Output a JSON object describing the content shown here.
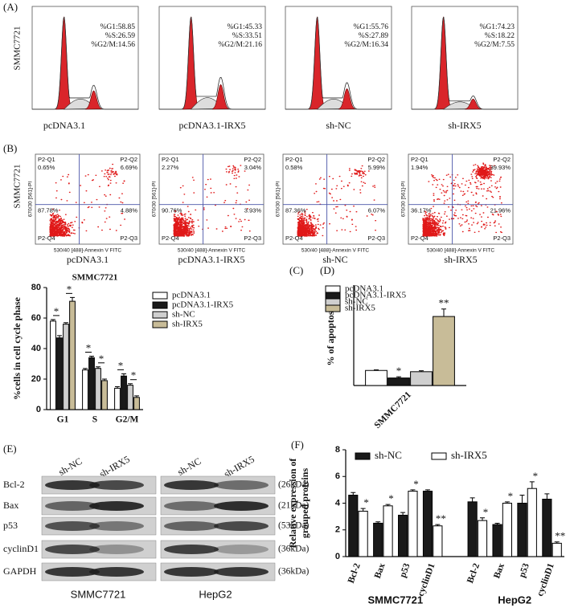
{
  "flow_cycle": {
    "panel": "(A)",
    "cell_line": "SMMC7721",
    "plots": [
      {
        "label": "pcDNA3.1",
        "stats": [
          "%G1:58.85",
          "%S:26.59",
          "%G2/M:14.56"
        ]
      },
      {
        "label": "pcDNA3.1-IRX5",
        "stats": [
          "%G1:45.33",
          "%S:33.51",
          "%G2/M:21.16"
        ]
      },
      {
        "label": "sh-NC",
        "stats": [
          "%G1:55.76",
          "%S:27.89",
          "%G2/M:16.34"
        ]
      },
      {
        "label": "sh-IRX5",
        "stats": [
          "%G1:74.23",
          "%S:18.22",
          "%G2/M:7.55"
        ]
      }
    ]
  },
  "flow_apoptosis": {
    "panel": "(B)",
    "cell_line": "SMMC7721",
    "x_label": "530/40 [488]-Annexin V FITC",
    "y_label": "670/30 [561]-PI",
    "plots": [
      {
        "label": "pcDNA3.1",
        "quadrants": [
          {
            "name": "P2-Q1",
            "value": "0.65%"
          },
          {
            "name": "P2-Q2",
            "value": "6.69%"
          },
          {
            "name": "P2-Q3",
            "value": "4.88%"
          },
          {
            "name": "P2-Q4",
            "value": "87.78%"
          }
        ]
      },
      {
        "label": "pcDNA3.1-IRX5",
        "quadrants": [
          {
            "name": "P2-Q1",
            "value": "2.27%"
          },
          {
            "name": "P2-Q2",
            "value": "3.04%"
          },
          {
            "name": "P2-Q3",
            "value": "3.93%"
          },
          {
            "name": "P2-Q4",
            "value": "90.76%"
          }
        ]
      },
      {
        "label": "sh-NC",
        "quadrants": [
          {
            "name": "P2-Q1",
            "value": "0.58%"
          },
          {
            "name": "P2-Q2",
            "value": "5.99%"
          },
          {
            "name": "P2-Q3",
            "value": "6.07%"
          },
          {
            "name": "P2-Q4",
            "value": "87.36%"
          }
        ]
      },
      {
        "label": "sh-IRX5",
        "quadrants": [
          {
            "name": "P2-Q1",
            "value": "1.94%"
          },
          {
            "name": "P2-Q2",
            "value": "39.93%"
          },
          {
            "name": "P2-Q3",
            "value": "21.96%"
          },
          {
            "name": "P2-Q4",
            "value": "36.17%"
          }
        ]
      }
    ]
  },
  "western_blot": {
    "panel": "(E)",
    "lanes": [
      "sh-NC",
      "sh-IRX5",
      "sh-NC",
      "sh-IRX5"
    ],
    "cell_lines": [
      "SMMC7721",
      "HepG2"
    ],
    "proteins": [
      {
        "name": "Bcl-2",
        "size": "(26kDa)"
      },
      {
        "name": "Bax",
        "size": "(21kDa)"
      },
      {
        "name": "p53",
        "size": "(53kDa)"
      },
      {
        "name": "cyclinD1",
        "size": "(36kDa)"
      },
      {
        "name": "GAPDH",
        "size": "(36kDa)"
      }
    ]
  },
  "chart_data": [
    {
      "type": "bar",
      "panel": "(C)",
      "title": "SMMC7721",
      "y_label": [
        "%cells in cell cycle phase"
      ],
      "categories": [
        "G1",
        "S",
        "G2/M"
      ],
      "ylim": [
        0,
        80
      ],
      "yticks": [
        0,
        20,
        40,
        60,
        80
      ],
      "sig_bracket": true,
      "series": [
        {
          "name": "pcDNA3.1",
          "color": "#ffffff",
          "values": [
            58,
            26,
            14
          ],
          "errors": [
            1,
            1,
            1
          ]
        },
        {
          "name": "pcDNA3.1-IRX5",
          "color": "#1a1a1a",
          "values": [
            47,
            34,
            22
          ],
          "errors": [
            1.5,
            1,
            1.5
          ],
          "sig": [
            "*",
            "*",
            "*"
          ]
        },
        {
          "name": "sh-NC",
          "color": "#cfcfcf",
          "values": [
            56,
            27,
            16
          ],
          "errors": [
            1,
            1,
            1
          ]
        },
        {
          "name": "sh-IRX5",
          "color": "#c8bc98",
          "values": [
            71,
            19,
            8
          ],
          "errors": [
            2.5,
            1,
            1
          ],
          "sig": [
            "*",
            "*",
            "*"
          ]
        }
      ]
    },
    {
      "type": "bar",
      "panel": "(D)",
      "y_label": [
        "% of apoptosis"
      ],
      "categories": [
        "SMMC7721"
      ],
      "ylim": [
        0,
        80
      ],
      "series": [
        {
          "name": "pcDNA3.1",
          "color": "#ffffff",
          "values": [
            12
          ],
          "errors": [
            0.5
          ]
        },
        {
          "name": "pcDNA3.1-IRX5",
          "color": "#1a1a1a",
          "values": [
            6
          ],
          "errors": [
            1
          ],
          "sig": [
            "*"
          ]
        },
        {
          "name": "sh-NC",
          "color": "#cfcfcf",
          "values": [
            11
          ],
          "errors": [
            0.8
          ]
        },
        {
          "name": "sh-IRX5",
          "color": "#c8bc98",
          "values": [
            55
          ],
          "errors": [
            6
          ],
          "sig": [
            "**"
          ]
        }
      ]
    },
    {
      "type": "bar",
      "panel": "(F)",
      "y_label": [
        "Relative expression of",
        "grouped proteins"
      ],
      "categories": [
        "Bcl-2",
        "Bax",
        "p53",
        "cyclinD1",
        "Bcl-2",
        "Bax",
        "p53",
        "cyclinD1"
      ],
      "groups": [
        "SMMC7721",
        "HepG2"
      ],
      "ylim": [
        0,
        8
      ],
      "yticks": [
        0,
        2,
        4,
        6,
        8
      ],
      "series": [
        {
          "name": "sh-NC",
          "color": "#1a1a1a",
          "values": [
            4.6,
            2.5,
            3.1,
            4.9,
            4.1,
            2.4,
            4.0,
            4.3
          ],
          "errors": [
            0.2,
            0.1,
            0.2,
            0.1,
            0.3,
            0.1,
            0.6,
            0.4
          ]
        },
        {
          "name": "sh-IRX5",
          "color": "#ffffff",
          "values": [
            3.4,
            3.8,
            4.9,
            2.3,
            2.7,
            4.0,
            5.1,
            1.0
          ],
          "errors": [
            0.2,
            0.1,
            0.1,
            0.1,
            0.2,
            0.1,
            0.5,
            0.1
          ],
          "sig": [
            "*",
            "*",
            "*",
            "**",
            "*",
            "*",
            "*",
            "**"
          ]
        }
      ]
    }
  ]
}
